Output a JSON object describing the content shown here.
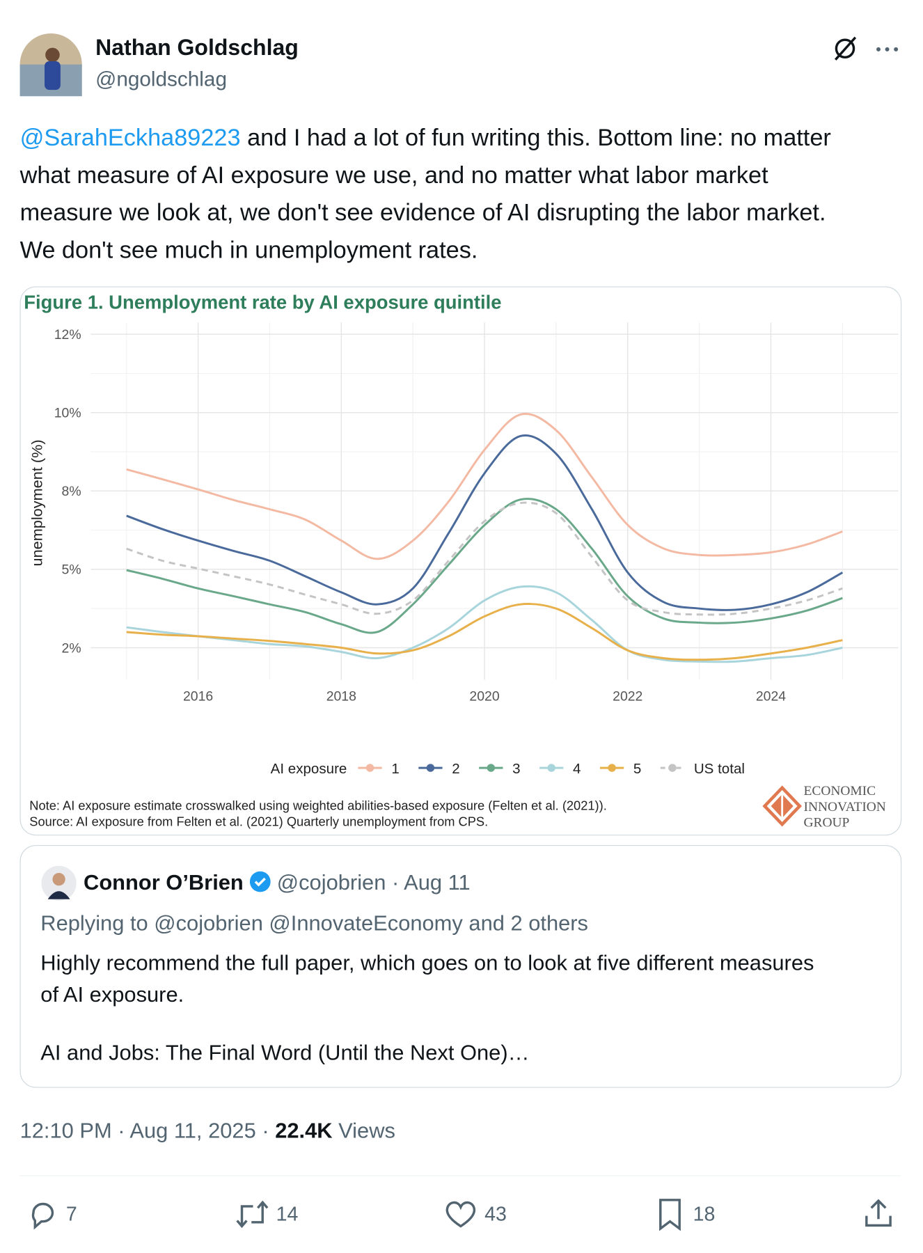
{
  "tweet": {
    "author": {
      "name": "Nathan Goldschlag",
      "handle": "@ngoldschlag"
    },
    "text": {
      "mention": "@SarahEckha89223",
      "body": " and I had a lot of fun writing this. Bottom line: no matter what measure of AI exposure we use, and no matter what labor market measure we look at, we don't see evidence of AI disrupting the labor market. We don't see much in unemployment rates."
    },
    "quote": {
      "name": "Connor O’Brien",
      "meta": "@cojobrien · Aug 11",
      "replying": "Replying to @cojobrien @InnovateEconomy and 2 others",
      "text": "Highly recommend the full paper, which goes on to look at five different measures of AI exposure.",
      "link_title": "AI and Jobs: The Final Word (Until the Next One)…"
    },
    "timestamp": "12:10 PM · Aug 11, 2025 · ",
    "views": "22.4K",
    "views_label": " Views",
    "replies": 7,
    "reposts": 14,
    "likes": 43,
    "bookmarks": 18
  },
  "chart_data": {
    "type": "line",
    "title": "Figure 1. Unemployment rate by AI exposure quintile",
    "y_label": "unemployment (%)",
    "legend_title": "AI exposure",
    "legend": "bottom",
    "grid": true,
    "note": "Note: AI exposure estimate crosswalked using weighted abilities-based exposure  (Felten et al. (2021)).",
    "source": "Source: AI exposure from Felten et al. (2021) Quarterly unemployment from CPS.",
    "logo": [
      "ECONOMIC",
      "INNOVATION",
      "GROUP"
    ],
    "xlim": [
      2014.5,
      2025.78
    ],
    "xticks": [
      2016,
      2018,
      2020,
      2022,
      2024
    ],
    "ylim": [
      0.77,
      12.3
    ],
    "yticks": [
      {
        "value": 12,
        "label": "12%"
      },
      {
        "value": 10,
        "label": "10%"
      },
      {
        "value": 8,
        "label": "8%"
      },
      {
        "value": 5,
        "label": "5%"
      },
      {
        "value": 2,
        "label": "2%"
      }
    ],
    "x": [
      2015,
      2015.5,
      2016,
      2016.5,
      2017,
      2017.5,
      2018,
      2018.5,
      2019,
      2019.5,
      2020,
      2020.5,
      2021,
      2021.5,
      2022,
      2022.5,
      2023,
      2023.5,
      2024,
      2024.5,
      2025
    ],
    "series": [
      {
        "name": "1",
        "color": "#f4b9a3",
        "values": [
          8.55,
          8.3,
          8.04,
          7.65,
          7.3,
          6.9,
          6.1,
          5.4,
          6.1,
          7.6,
          9.05,
          9.95,
          9.55,
          8.35,
          6.7,
          5.8,
          5.55,
          5.55,
          5.65,
          5.95,
          6.45
        ]
      },
      {
        "name": "2",
        "color": "#4a6a9b",
        "values": [
          7.05,
          6.54,
          6.1,
          5.7,
          5.33,
          4.73,
          4.12,
          3.66,
          4.27,
          6.39,
          8.45,
          9.4,
          8.95,
          7.3,
          4.88,
          3.75,
          3.5,
          3.45,
          3.66,
          4.12,
          4.88
        ]
      },
      {
        "name": "3",
        "color": "#6aa88a",
        "values": [
          4.97,
          4.64,
          4.27,
          3.97,
          3.66,
          3.36,
          2.9,
          2.6,
          3.66,
          5.18,
          6.69,
          7.67,
          7.3,
          5.79,
          3.97,
          3.12,
          2.96,
          2.96,
          3.12,
          3.42,
          3.9
        ]
      },
      {
        "name": "4",
        "color": "#a8d5dc",
        "values": [
          2.78,
          2.6,
          2.44,
          2.29,
          2.14,
          2.05,
          1.84,
          1.6,
          2.0,
          2.75,
          3.81,
          4.33,
          4.12,
          3.06,
          1.9,
          1.54,
          1.47,
          1.47,
          1.6,
          1.72,
          2.0
        ]
      },
      {
        "name": "5",
        "color": "#e8b04a",
        "values": [
          2.6,
          2.5,
          2.44,
          2.35,
          2.26,
          2.14,
          2.0,
          1.78,
          1.9,
          2.44,
          3.2,
          3.66,
          3.5,
          2.75,
          1.9,
          1.6,
          1.54,
          1.6,
          1.78,
          2.0,
          2.29
        ]
      },
      {
        "name": "US total",
        "color": "#c4c4c4",
        "dashed": true,
        "values": [
          5.79,
          5.33,
          5.03,
          4.73,
          4.42,
          4.03,
          3.66,
          3.3,
          3.81,
          5.33,
          6.84,
          7.54,
          7.15,
          5.48,
          3.81,
          3.36,
          3.27,
          3.3,
          3.5,
          3.81,
          4.27
        ]
      }
    ]
  }
}
